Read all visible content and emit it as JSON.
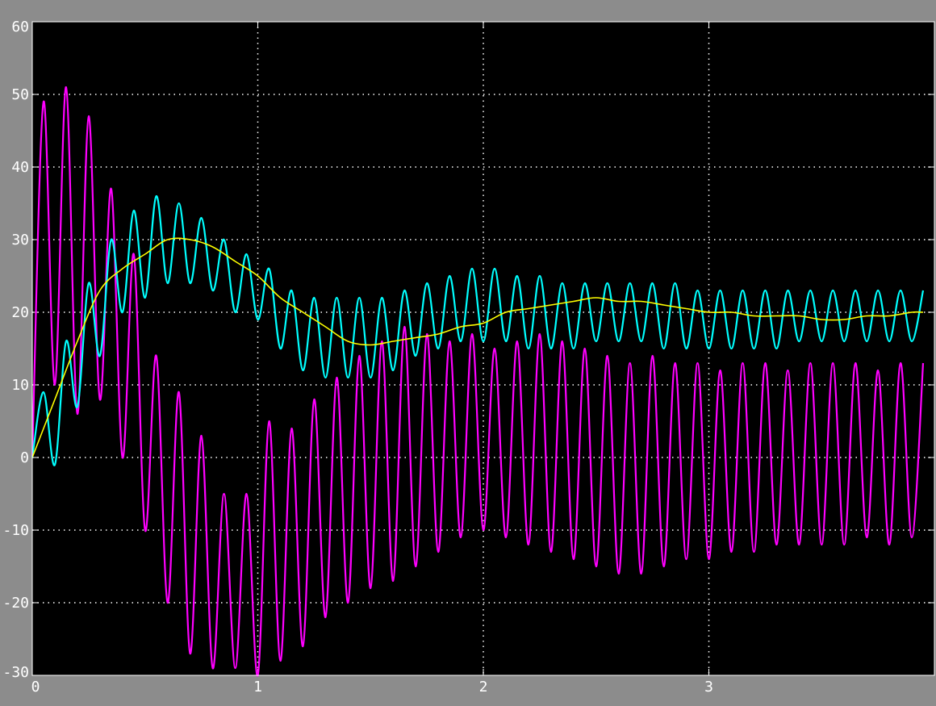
{
  "chart_data": {
    "type": "line",
    "title": "",
    "xlabel": "",
    "ylabel": "",
    "xlim": [
      0,
      4
    ],
    "ylim": [
      -30,
      60
    ],
    "x_ticks": [
      0,
      1,
      2,
      3
    ],
    "x_tick_labels": [
      "0",
      "1",
      "2",
      "3"
    ],
    "y_ticks": [
      -30,
      -20,
      -10,
      0,
      10,
      20,
      30,
      40,
      50,
      60
    ],
    "y_tick_labels": [
      "-30",
      "-20",
      "-10",
      "0",
      "10",
      "20",
      "30",
      "40",
      "50",
      "60"
    ],
    "grid": true,
    "legend": "none",
    "background": "#000000",
    "frame_background": "#8c8c8c",
    "grid_color": "#ffffff",
    "tick_label_color": "#ffffff",
    "series": [
      {
        "color": "#ff00ff",
        "x": [
          0,
          0.05,
          0.1,
          0.15,
          0.2,
          0.25,
          0.3,
          0.35,
          0.4,
          0.45,
          0.5,
          0.55,
          0.6,
          0.65,
          0.7,
          0.75,
          0.8,
          0.85,
          0.9,
          0.95,
          1.0,
          1.05,
          1.1,
          1.15,
          1.2,
          1.25,
          1.3,
          1.35,
          1.4,
          1.45,
          1.5,
          1.55,
          1.6,
          1.65,
          1.7,
          1.75,
          1.8,
          1.85,
          1.9,
          1.95,
          2.0,
          2.05,
          2.1,
          2.15,
          2.2,
          2.25,
          2.3,
          2.35,
          2.4,
          2.45,
          2.5,
          2.55,
          2.6,
          2.65,
          2.7,
          2.75,
          2.8,
          2.85,
          2.9,
          2.95,
          3.0,
          3.05,
          3.1,
          3.15,
          3.2,
          3.25,
          3.3,
          3.35,
          3.4,
          3.45,
          3.5,
          3.55,
          3.6,
          3.65,
          3.7,
          3.75,
          3.8,
          3.85,
          3.9,
          3.95
        ],
        "y": [
          0,
          49,
          10,
          51,
          6,
          47,
          8,
          37,
          0,
          28,
          -10,
          14,
          -20,
          9,
          -27,
          3,
          -29,
          -5,
          -29,
          -5,
          -30,
          5,
          -28,
          4,
          -26,
          8,
          -22,
          11,
          -20,
          14,
          -18,
          16,
          -17,
          18,
          -15,
          17,
          -13,
          16,
          -11,
          17,
          -10,
          15,
          -11,
          16,
          -12,
          17,
          -13,
          16,
          -14,
          15,
          -15,
          14,
          -16,
          13,
          -16,
          14,
          -15,
          13,
          -14,
          13,
          -14,
          12,
          -13,
          13,
          -13,
          13,
          -12,
          12,
          -12,
          13,
          -12,
          13,
          -12,
          13,
          -11,
          12,
          -12,
          13,
          -11,
          13
        ]
      },
      {
        "color": "#00ffff",
        "x": [
          0,
          0.05,
          0.1,
          0.15,
          0.2,
          0.25,
          0.3,
          0.35,
          0.4,
          0.45,
          0.5,
          0.55,
          0.6,
          0.65,
          0.7,
          0.75,
          0.8,
          0.85,
          0.9,
          0.95,
          1.0,
          1.05,
          1.1,
          1.15,
          1.2,
          1.25,
          1.3,
          1.35,
          1.4,
          1.45,
          1.5,
          1.55,
          1.6,
          1.65,
          1.7,
          1.75,
          1.8,
          1.85,
          1.9,
          1.95,
          2.0,
          2.05,
          2.1,
          2.15,
          2.2,
          2.25,
          2.3,
          2.35,
          2.4,
          2.45,
          2.5,
          2.55,
          2.6,
          2.65,
          2.7,
          2.75,
          2.8,
          2.85,
          2.9,
          2.95,
          3.0,
          3.05,
          3.1,
          3.15,
          3.2,
          3.25,
          3.3,
          3.35,
          3.4,
          3.45,
          3.5,
          3.55,
          3.6,
          3.65,
          3.7,
          3.75,
          3.8,
          3.85,
          3.9,
          3.95
        ],
        "y": [
          0,
          9,
          -1,
          16,
          7,
          24,
          14,
          30,
          20,
          34,
          22,
          36,
          24,
          35,
          24,
          33,
          23,
          30,
          20,
          28,
          19,
          26,
          15,
          23,
          12,
          22,
          11,
          22,
          11,
          22,
          11,
          22,
          12,
          23,
          14,
          24,
          15,
          25,
          16,
          26,
          16,
          26,
          16,
          25,
          15,
          25,
          15,
          24,
          15,
          24,
          16,
          24,
          16,
          24,
          16,
          24,
          15,
          24,
          15,
          23,
          15,
          23,
          15,
          23,
          15,
          23,
          15,
          23,
          16,
          23,
          16,
          23,
          16,
          23,
          16,
          23,
          16,
          23,
          16,
          23
        ]
      },
      {
        "color": "#ffff00",
        "x": [
          0,
          0.1,
          0.2,
          0.3,
          0.4,
          0.5,
          0.6,
          0.7,
          0.8,
          0.9,
          1.0,
          1.1,
          1.2,
          1.3,
          1.4,
          1.5,
          1.6,
          1.7,
          1.8,
          1.9,
          2.0,
          2.1,
          2.2,
          2.3,
          2.4,
          2.5,
          2.6,
          2.7,
          2.8,
          2.9,
          3.0,
          3.1,
          3.2,
          3.3,
          3.4,
          3.5,
          3.6,
          3.7,
          3.8,
          3.9,
          3.95
        ],
        "y": [
          0,
          8,
          16,
          23,
          26,
          28,
          30,
          30,
          29,
          27,
          25,
          22,
          20,
          18,
          16,
          15.5,
          16,
          16.5,
          17,
          18,
          18.5,
          20,
          20.5,
          21,
          21.5,
          22,
          21.5,
          21.5,
          21,
          20.5,
          20,
          20,
          19.5,
          19.5,
          19.5,
          19,
          19,
          19.5,
          19.5,
          20,
          20
        ]
      }
    ]
  }
}
